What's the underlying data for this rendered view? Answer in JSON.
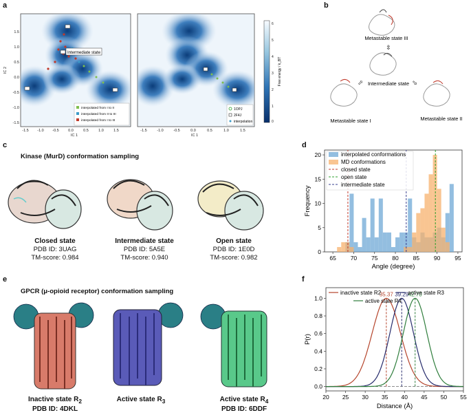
{
  "panel_letters": {
    "a": "a",
    "b": "b",
    "c": "c",
    "d": "d",
    "e": "e",
    "f": "f"
  },
  "panel_a": {
    "left": {
      "xlabel": "IC 1",
      "ylabel": "IC 2",
      "xticks": [
        "-1.5",
        "-1.0",
        "-0.5",
        "0.0",
        "0.5",
        "1.0",
        "1.5"
      ],
      "yticks": [
        "1.5",
        "1.0",
        "0.5",
        "0.0",
        "-0.5",
        "-1.0",
        "-1.5"
      ],
      "annotation": "Intermediate state",
      "legend": [
        "interpolated from I to II",
        "interpolated from II to III",
        "interpolated from I to III"
      ]
    },
    "right": {
      "xlabel": "IC 1",
      "xticks": [
        "-1.5",
        "-1.0",
        "-0.5",
        "0.0",
        "0.5",
        "1.0",
        "1.5"
      ],
      "legend": [
        "1OPJ",
        "2F4J",
        "interpolation"
      ]
    },
    "colorbar": {
      "label": "Free energy / k_BT",
      "ticks": [
        "6",
        "5",
        "4",
        "3",
        "2",
        "1",
        "0"
      ]
    }
  },
  "panel_b": {
    "state3": "Metastable state III",
    "intermediate": "Intermediate state",
    "state1": "Metastable state I",
    "state2": "Metastable state II"
  },
  "panel_c": {
    "title": "Kinase (MurD) conformation sampling",
    "structures": [
      {
        "name": "Closed state",
        "pdb": "PDB ID: 3UAG",
        "tm": "TM-score: 0.984"
      },
      {
        "name": "Intermediate state",
        "pdb": "PDB ID: 5A5E",
        "tm": "TM-score: 0.940"
      },
      {
        "name": "Open state",
        "pdb": "PDB ID: 1E0D",
        "tm": "TM-score: 0.982"
      }
    ]
  },
  "panel_e": {
    "title": "GPCR (μ-opioid receptor) conformation sampling",
    "structures": [
      {
        "name": "Inactive state R",
        "sub": "2",
        "pdb": "PDB ID: 4DKL"
      },
      {
        "name": "Active state R",
        "sub": "3",
        "pdb": ""
      },
      {
        "name": "Active state R",
        "sub": "4",
        "pdb": "PDB ID: 6DDF"
      }
    ]
  },
  "chart_data": [
    {
      "type": "bar",
      "panel": "d",
      "xlabel": "Angle (degree)",
      "ylabel": "Frequency",
      "xlim": [
        63,
        96
      ],
      "ylim": [
        0,
        21
      ],
      "xticks": [
        65,
        70,
        75,
        80,
        85,
        90,
        95
      ],
      "yticks": [
        0,
        5,
        10,
        15,
        20
      ],
      "bin_width": 1,
      "series": [
        {
          "name": "interpolated conformations",
          "color": "#6fa8d6",
          "bins": [
            [
              68,
              2
            ],
            [
              69,
              12
            ],
            [
              70,
              2
            ],
            [
              71,
              1
            ],
            [
              72,
              7
            ],
            [
              73,
              3
            ],
            [
              74,
              11
            ],
            [
              75,
              3
            ],
            [
              76,
              11
            ],
            [
              77,
              4
            ],
            [
              78,
              4
            ],
            [
              79,
              1
            ],
            [
              80,
              3
            ],
            [
              81,
              4
            ],
            [
              82,
              4
            ],
            [
              83,
              11
            ],
            [
              84,
              3
            ],
            [
              85,
              2
            ],
            [
              86,
              4
            ],
            [
              87,
              3
            ],
            [
              88,
              3
            ],
            [
              89,
              4
            ],
            [
              90,
              5
            ],
            [
              91,
              3
            ],
            [
              92,
              8
            ],
            [
              93,
              14
            ]
          ]
        },
        {
          "name": "MD conformations",
          "color": "#f7b26e",
          "bins": [
            [
              66,
              1
            ],
            [
              67,
              2
            ],
            [
              68,
              2
            ],
            [
              69,
              1
            ],
            [
              82,
              1
            ],
            [
              83,
              1
            ],
            [
              84,
              4
            ],
            [
              85,
              8
            ],
            [
              86,
              9
            ],
            [
              87,
              12
            ],
            [
              88,
              16
            ],
            [
              89,
              20
            ],
            [
              90,
              13
            ],
            [
              91,
              5
            ],
            [
              92,
              2
            ]
          ]
        }
      ],
      "vlines": [
        {
          "name": "closed state",
          "x": 68.6,
          "color": "#c0392b"
        },
        {
          "name": "open state",
          "x": 89.6,
          "color": "#2ca02c"
        },
        {
          "name": "intermediate state",
          "x": 82.6,
          "color": "#3a3f8f"
        }
      ],
      "legend_position": "top-left"
    },
    {
      "type": "line",
      "panel": "f",
      "xlabel": "Distance (Å)",
      "ylabel": "P(r)",
      "xlim": [
        20,
        55
      ],
      "ylim": [
        -0.05,
        1.12
      ],
      "xticks": [
        20,
        25,
        30,
        35,
        40,
        45,
        50,
        55
      ],
      "yticks": [
        0.0,
        0.2,
        0.4,
        0.6,
        0.8,
        1.0
      ],
      "series": [
        {
          "name": "inactive state R2",
          "color": "#b5442b",
          "mu": 35.37,
          "sigma": 3.6,
          "label": "35.37"
        },
        {
          "name": "active state R3",
          "color": "#252a6b",
          "mu": 39.29,
          "sigma": 3.0,
          "label": "39.29"
        },
        {
          "name": "active state R4",
          "color": "#2e7d3b",
          "mu": 42.7,
          "sigma": 3.0,
          "label": "42.70"
        }
      ],
      "legend_position": "top"
    }
  ]
}
